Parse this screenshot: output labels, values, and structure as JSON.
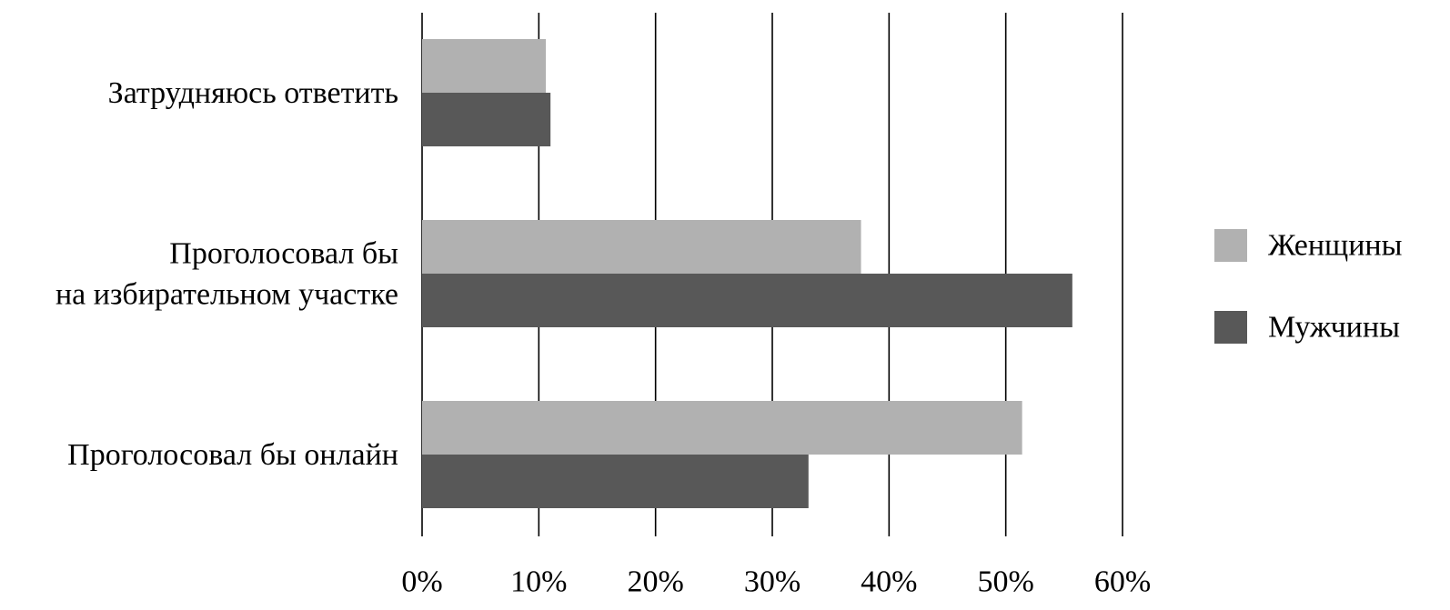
{
  "chart_data": {
    "type": "bar",
    "orientation": "horizontal",
    "categories": [
      "Затрудняюсь ответить",
      "Проголосовал бы на избирательном участке",
      "Проголосовал бы онлайн"
    ],
    "category_label_lines": [
      [
        "Затрудняюсь ответить"
      ],
      [
        "Проголосовал бы",
        "на избирательном участке"
      ],
      [
        "Проголосовал бы онлайн"
      ]
    ],
    "series": [
      {
        "name": "Женщины",
        "color": "#b1b1b1",
        "values": [
          10.6,
          37.6,
          51.4
        ]
      },
      {
        "name": "Мужчины",
        "color": "#585858",
        "values": [
          11.0,
          55.7,
          33.1
        ]
      }
    ],
    "xlim": [
      0,
      60
    ],
    "x_ticks": [
      0,
      10,
      20,
      30,
      40,
      50,
      60
    ],
    "x_tick_labels": [
      "0%",
      "10%",
      "20%",
      "30%",
      "40%",
      "50%",
      "60%"
    ],
    "grid": "vertical",
    "legend_position": "right",
    "title": "",
    "xlabel": "",
    "ylabel": ""
  }
}
